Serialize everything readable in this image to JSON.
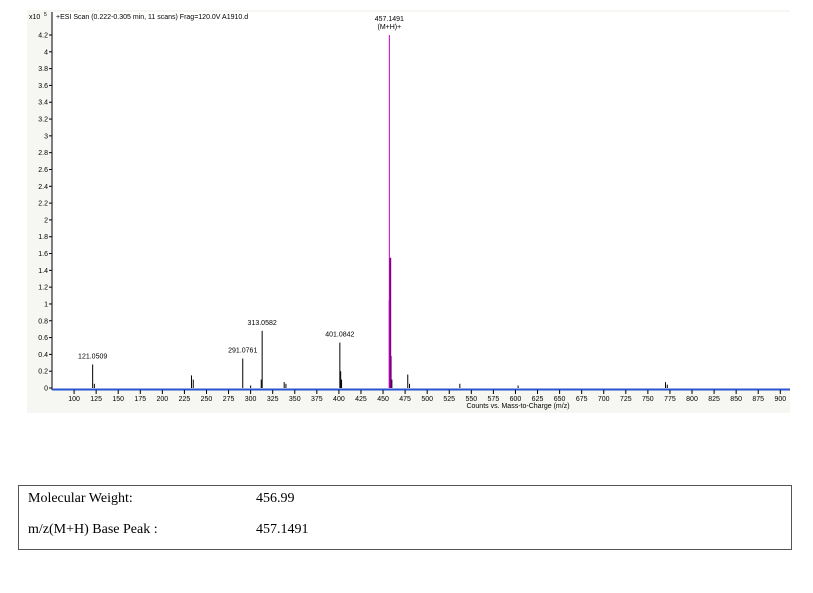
{
  "chart_data": {
    "type": "spectrum",
    "title": "+ESI Scan (0.222-0.305 min, 11 scans) Frag=120.0V A1910.d",
    "x_label": "Counts vs. Mass-to-Charge (m/z)",
    "y_multiplier": "x10",
    "y_exponent": "5",
    "xlim": [
      75,
      911
    ],
    "xticks": [
      100,
      125,
      150,
      175,
      200,
      225,
      250,
      275,
      300,
      325,
      350,
      375,
      400,
      425,
      450,
      475,
      500,
      525,
      550,
      575,
      600,
      625,
      650,
      675,
      700,
      725,
      750,
      775,
      800,
      825,
      850,
      875,
      900
    ],
    "ylim": [
      0,
      4.4
    ],
    "yticks": [
      0,
      0.2,
      0.4,
      0.6,
      0.8,
      1,
      1.2,
      1.4,
      1.6,
      1.8,
      2,
      2.2,
      2.4,
      2.6,
      2.8,
      3,
      3.2,
      3.4,
      3.6,
      3.8,
      4,
      4.2
    ],
    "series": [
      {
        "color": "#000000",
        "x": [
          121.0509,
          123,
          233,
          235,
          291.0761,
          300,
          312,
          313.0582,
          338,
          340,
          401.0842,
          402,
          403,
          460,
          478,
          480,
          537,
          603,
          770,
          772
        ],
        "values": [
          0.28,
          0.05,
          0.15,
          0.1,
          0.35,
          0.03,
          0.1,
          0.68,
          0.07,
          0.05,
          0.54,
          0.2,
          0.1,
          0.1,
          0.16,
          0.05,
          0.05,
          0.03,
          0.07,
          0.04
        ],
        "peak_labels": [
          "121.0509",
          null,
          null,
          null,
          "291.0761",
          null,
          null,
          "313.0582",
          null,
          null,
          "401.0842",
          null,
          null,
          null,
          null,
          null,
          null,
          null,
          null,
          null
        ]
      },
      {
        "color": "#800080",
        "x": [
          457.6,
          458.1,
          458.6
        ],
        "values": [
          1.05,
          1.55,
          0.38
        ]
      },
      {
        "color": "#c000c0",
        "x": [
          457.1491
        ],
        "values": [
          4.2
        ],
        "peak_labels": [
          "457.1491"
        ],
        "ion_label": "(M+H)+"
      }
    ]
  },
  "table": {
    "rows": [
      [
        "Molecular Weight:",
        "456.99"
      ],
      [
        "m/z(M+H) Base Peak :",
        "457.1491"
      ]
    ]
  }
}
